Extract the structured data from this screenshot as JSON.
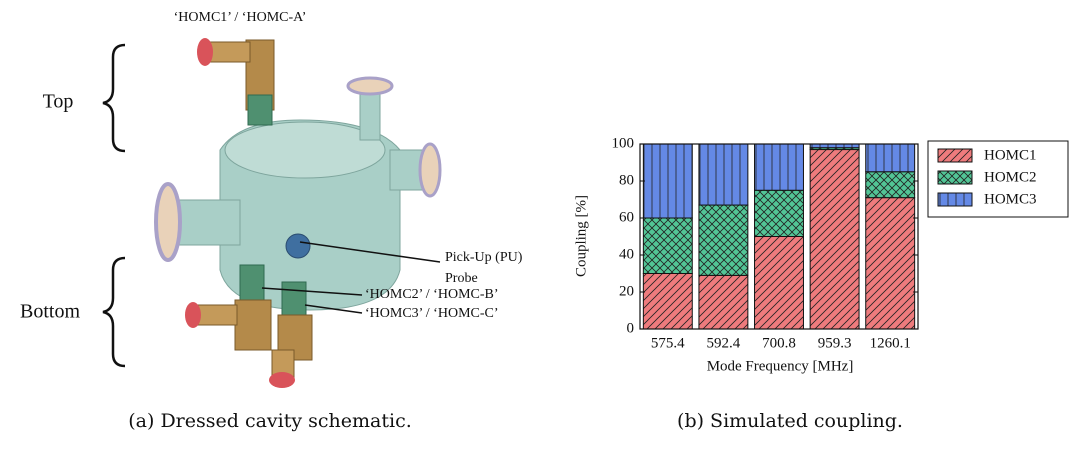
{
  "schematic": {
    "top_label": "‘HOMC1’ / ‘HOMC-A’",
    "top": "Top",
    "bottom": "Bottom",
    "probe_line1": "Pick-Up (PU)",
    "probe_line2": "Probe",
    "homc2": "‘HOMC2’ / ‘HOMC-B’",
    "homc3": "‘HOMC3’ / ‘HOMC-C’"
  },
  "captions": [
    "(a) Dressed cavity schematic.",
    "(b) Simulated coupling."
  ],
  "chart_data": {
    "type": "stacked_bar",
    "xlabel": "Mode Frequency [MHz]",
    "ylabel": "Coupling [%]",
    "categories": [
      "575.4",
      "592.4",
      "700.8",
      "959.3",
      "1260.1"
    ],
    "series": [
      {
        "name": "HOMC1",
        "color": "#ee7b7d",
        "hatch": "//",
        "values": [
          30,
          29,
          50,
          97,
          71
        ]
      },
      {
        "name": "HOMC2",
        "color": "#52c596",
        "hatch": "xx",
        "values": [
          30,
          38,
          25,
          1,
          14
        ]
      },
      {
        "name": "HOMC3",
        "color": "#6489e6",
        "hatch": "||",
        "values": [
          40,
          33,
          25,
          2,
          15
        ]
      }
    ],
    "ylim": [
      0,
      100
    ],
    "yticks": [
      0,
      20,
      40,
      60,
      80,
      100
    ],
    "grid": false,
    "legend": "right"
  }
}
